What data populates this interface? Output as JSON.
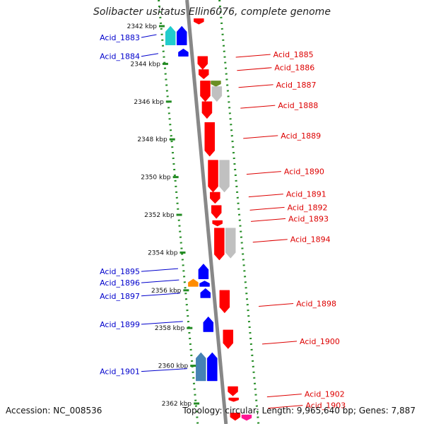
{
  "title": "Solibacter usitatus Ellin6076, complete genome",
  "accession": "Accession: NC_008536",
  "topology": "Topology: circular; Length: 9,965,640 bp; Genes: 7,887",
  "colors": {
    "forward_label": "#0000cc",
    "reverse_label": "#dd0000",
    "backbone": "#888888",
    "guide": "#228b22",
    "forward_gene": "#0000ff",
    "reverse_gene": "#ff0000"
  },
  "scale_ticks": [
    {
      "kbp": 2342,
      "label": "2342 kbp"
    },
    {
      "kbp": 2344,
      "label": "2344 kbp"
    },
    {
      "kbp": 2346,
      "label": "2346 kbp"
    },
    {
      "kbp": 2348,
      "label": "2348 kbp"
    },
    {
      "kbp": 2350,
      "label": "2350 kbp"
    },
    {
      "kbp": 2352,
      "label": "2352 kbp"
    },
    {
      "kbp": 2354,
      "label": "2354 kbp"
    },
    {
      "kbp": 2356,
      "label": "2356 kbp"
    },
    {
      "kbp": 2358,
      "label": "2358 kbp"
    },
    {
      "kbp": 2360,
      "label": "2360 kbp"
    },
    {
      "kbp": 2362,
      "label": "2362 kbp"
    }
  ],
  "left_labels": [
    {
      "text": "Acid_1883",
      "kbp": 2342.6
    },
    {
      "text": "Acid_1884",
      "kbp": 2343.6
    },
    {
      "text": "Acid_1895",
      "kbp": 2355.0
    },
    {
      "text": "Acid_1896",
      "kbp": 2355.6
    },
    {
      "text": "Acid_1897",
      "kbp": 2356.3
    },
    {
      "text": "Acid_1899",
      "kbp": 2357.8
    },
    {
      "text": "Acid_1901",
      "kbp": 2360.3
    }
  ],
  "right_labels": [
    {
      "text": "Acid_1885",
      "kbp": 2343.5
    },
    {
      "text": "Acid_1886",
      "kbp": 2344.2
    },
    {
      "text": "Acid_1887",
      "kbp": 2345.1
    },
    {
      "text": "Acid_1888",
      "kbp": 2346.2
    },
    {
      "text": "Acid_1889",
      "kbp": 2347.8
    },
    {
      "text": "Acid_1890",
      "kbp": 2349.7
    },
    {
      "text": "Acid_1891",
      "kbp": 2350.9
    },
    {
      "text": "Acid_1892",
      "kbp": 2351.6
    },
    {
      "text": "Acid_1893",
      "kbp": 2352.2
    },
    {
      "text": "Acid_1894",
      "kbp": 2353.3
    },
    {
      "text": "Acid_1898",
      "kbp": 2356.7
    },
    {
      "text": "Acid_1900",
      "kbp": 2358.7
    },
    {
      "text": "Acid_1902",
      "kbp": 2361.5
    },
    {
      "text": "Acid_1903",
      "kbp": 2362.1
    }
  ],
  "genes": [
    {
      "strand": "+",
      "ring": 2,
      "start": 2342.0,
      "end": 2343.0,
      "color": "#22cccc"
    },
    {
      "strand": "+",
      "ring": 1,
      "start": 2342.0,
      "end": 2343.0,
      "color": "#0000ff"
    },
    {
      "strand": "+",
      "ring": 1,
      "start": 2343.2,
      "end": 2343.6,
      "color": "#0000ff"
    },
    {
      "strand": "-",
      "ring": 1,
      "start": 2341.6,
      "end": 2341.9,
      "color": "#ff0000"
    },
    {
      "strand": "-",
      "ring": 1,
      "start": 2343.6,
      "end": 2344.3,
      "color": "#ff0000"
    },
    {
      "strand": "-",
      "ring": 1,
      "start": 2344.3,
      "end": 2344.8,
      "color": "#ff0000"
    },
    {
      "strand": "-",
      "ring": 1,
      "start": 2344.9,
      "end": 2346.0,
      "color": "#ff0000"
    },
    {
      "strand": "-",
      "ring": 2,
      "start": 2344.9,
      "end": 2345.2,
      "color": "#6b8e23"
    },
    {
      "strand": "-",
      "ring": 2,
      "start": 2345.2,
      "end": 2346.0,
      "color": "#c0c0c0"
    },
    {
      "strand": "-",
      "ring": 1,
      "start": 2346.0,
      "end": 2346.9,
      "color": "#ff0000"
    },
    {
      "strand": "-",
      "ring": 1,
      "start": 2347.1,
      "end": 2348.9,
      "color": "#ff0000"
    },
    {
      "strand": "-",
      "ring": 1,
      "start": 2349.1,
      "end": 2350.8,
      "color": "#ff0000"
    },
    {
      "strand": "-",
      "ring": 2,
      "start": 2349.1,
      "end": 2350.8,
      "color": "#c0c0c0"
    },
    {
      "strand": "-",
      "ring": 1,
      "start": 2350.8,
      "end": 2351.4,
      "color": "#ff0000"
    },
    {
      "strand": "-",
      "ring": 1,
      "start": 2351.5,
      "end": 2352.2,
      "color": "#ff0000"
    },
    {
      "strand": "-",
      "ring": 1,
      "start": 2352.3,
      "end": 2352.6,
      "color": "#ff0000"
    },
    {
      "strand": "-",
      "ring": 1,
      "start": 2352.7,
      "end": 2354.4,
      "color": "#ff0000"
    },
    {
      "strand": "-",
      "ring": 2,
      "start": 2352.7,
      "end": 2354.3,
      "color": "#c0c0c0"
    },
    {
      "strand": "+",
      "ring": 1,
      "start": 2354.6,
      "end": 2355.4,
      "color": "#0000ff"
    },
    {
      "strand": "+",
      "ring": 1,
      "start": 2355.5,
      "end": 2355.8,
      "color": "#0000ff"
    },
    {
      "strand": "+",
      "ring": 1,
      "start": 2355.9,
      "end": 2356.4,
      "color": "#0000ff"
    },
    {
      "strand": "+",
      "ring": 2,
      "start": 2355.4,
      "end": 2355.8,
      "color": "#ff8c00"
    },
    {
      "strand": "-",
      "ring": 1,
      "start": 2356.0,
      "end": 2357.2,
      "color": "#ff0000"
    },
    {
      "strand": "+",
      "ring": 1,
      "start": 2357.4,
      "end": 2358.2,
      "color": "#0000ff"
    },
    {
      "strand": "-",
      "ring": 1,
      "start": 2358.1,
      "end": 2359.1,
      "color": "#ff0000"
    },
    {
      "strand": "+",
      "ring": 2,
      "start": 2359.3,
      "end": 2360.8,
      "color": "#4682b4"
    },
    {
      "strand": "+",
      "ring": 1,
      "start": 2359.3,
      "end": 2360.8,
      "color": "#0000ff"
    },
    {
      "strand": "-",
      "ring": 1,
      "start": 2361.1,
      "end": 2361.6,
      "color": "#ff0000"
    },
    {
      "strand": "-",
      "ring": 1,
      "start": 2361.7,
      "end": 2361.9,
      "color": "#ff0000"
    },
    {
      "strand": "-",
      "ring": 1,
      "start": 2362.5,
      "end": 2362.9,
      "color": "#ff0000"
    },
    {
      "strand": "-",
      "ring": 2,
      "start": 2362.6,
      "end": 2362.9,
      "color": "#ff1493"
    }
  ]
}
